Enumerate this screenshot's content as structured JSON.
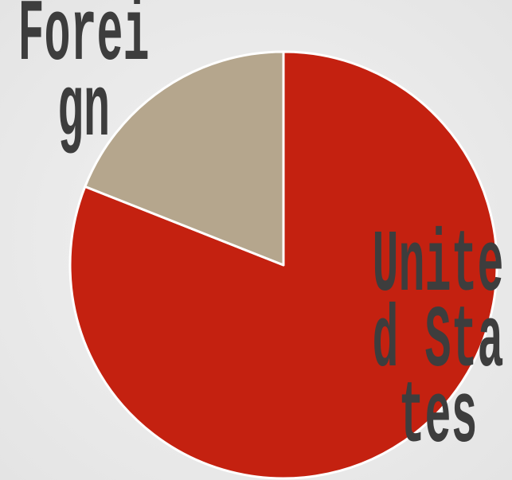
{
  "chart_data": {
    "type": "pie",
    "categories": [
      "United States",
      "Foreign"
    ],
    "values": [
      81,
      19
    ],
    "colors": [
      "#c42110",
      "#b5a68d"
    ]
  }
}
